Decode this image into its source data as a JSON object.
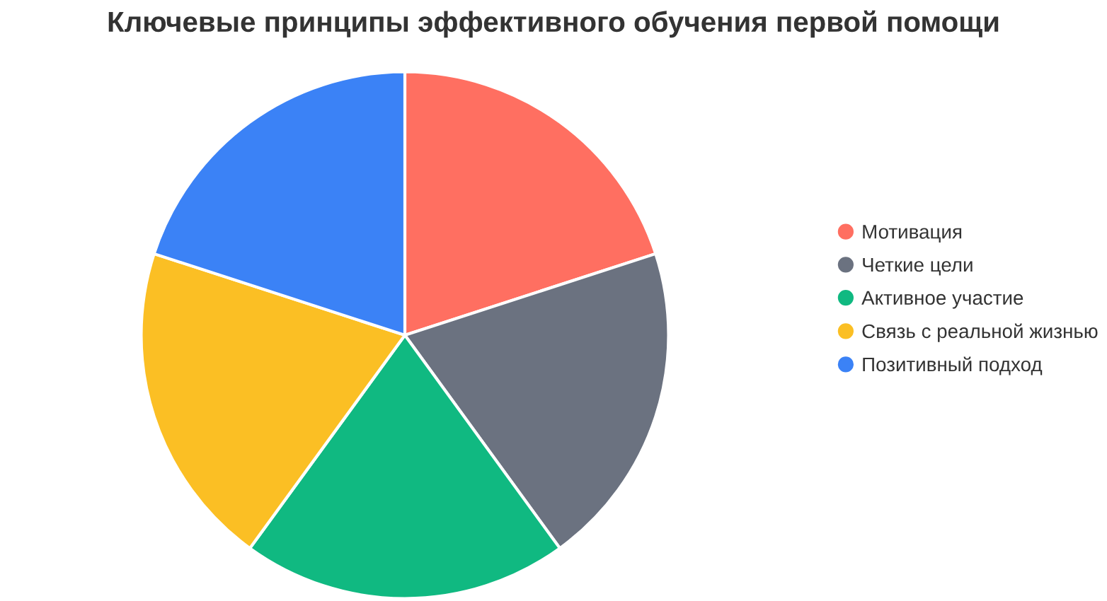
{
  "chart_data": {
    "type": "pie",
    "title": "Ключевые принципы эффективного обучения первой помощи",
    "categories": [
      "Мотивация",
      "Четкие цели",
      "Активное участие",
      "Связь с реальной жизнью",
      "Позитивный подход"
    ],
    "values": [
      20,
      20,
      20,
      20,
      20
    ],
    "colors": [
      "#ff6f61",
      "#6b7280",
      "#10b981",
      "#fbbf24",
      "#3b82f6"
    ],
    "legend": "right"
  }
}
